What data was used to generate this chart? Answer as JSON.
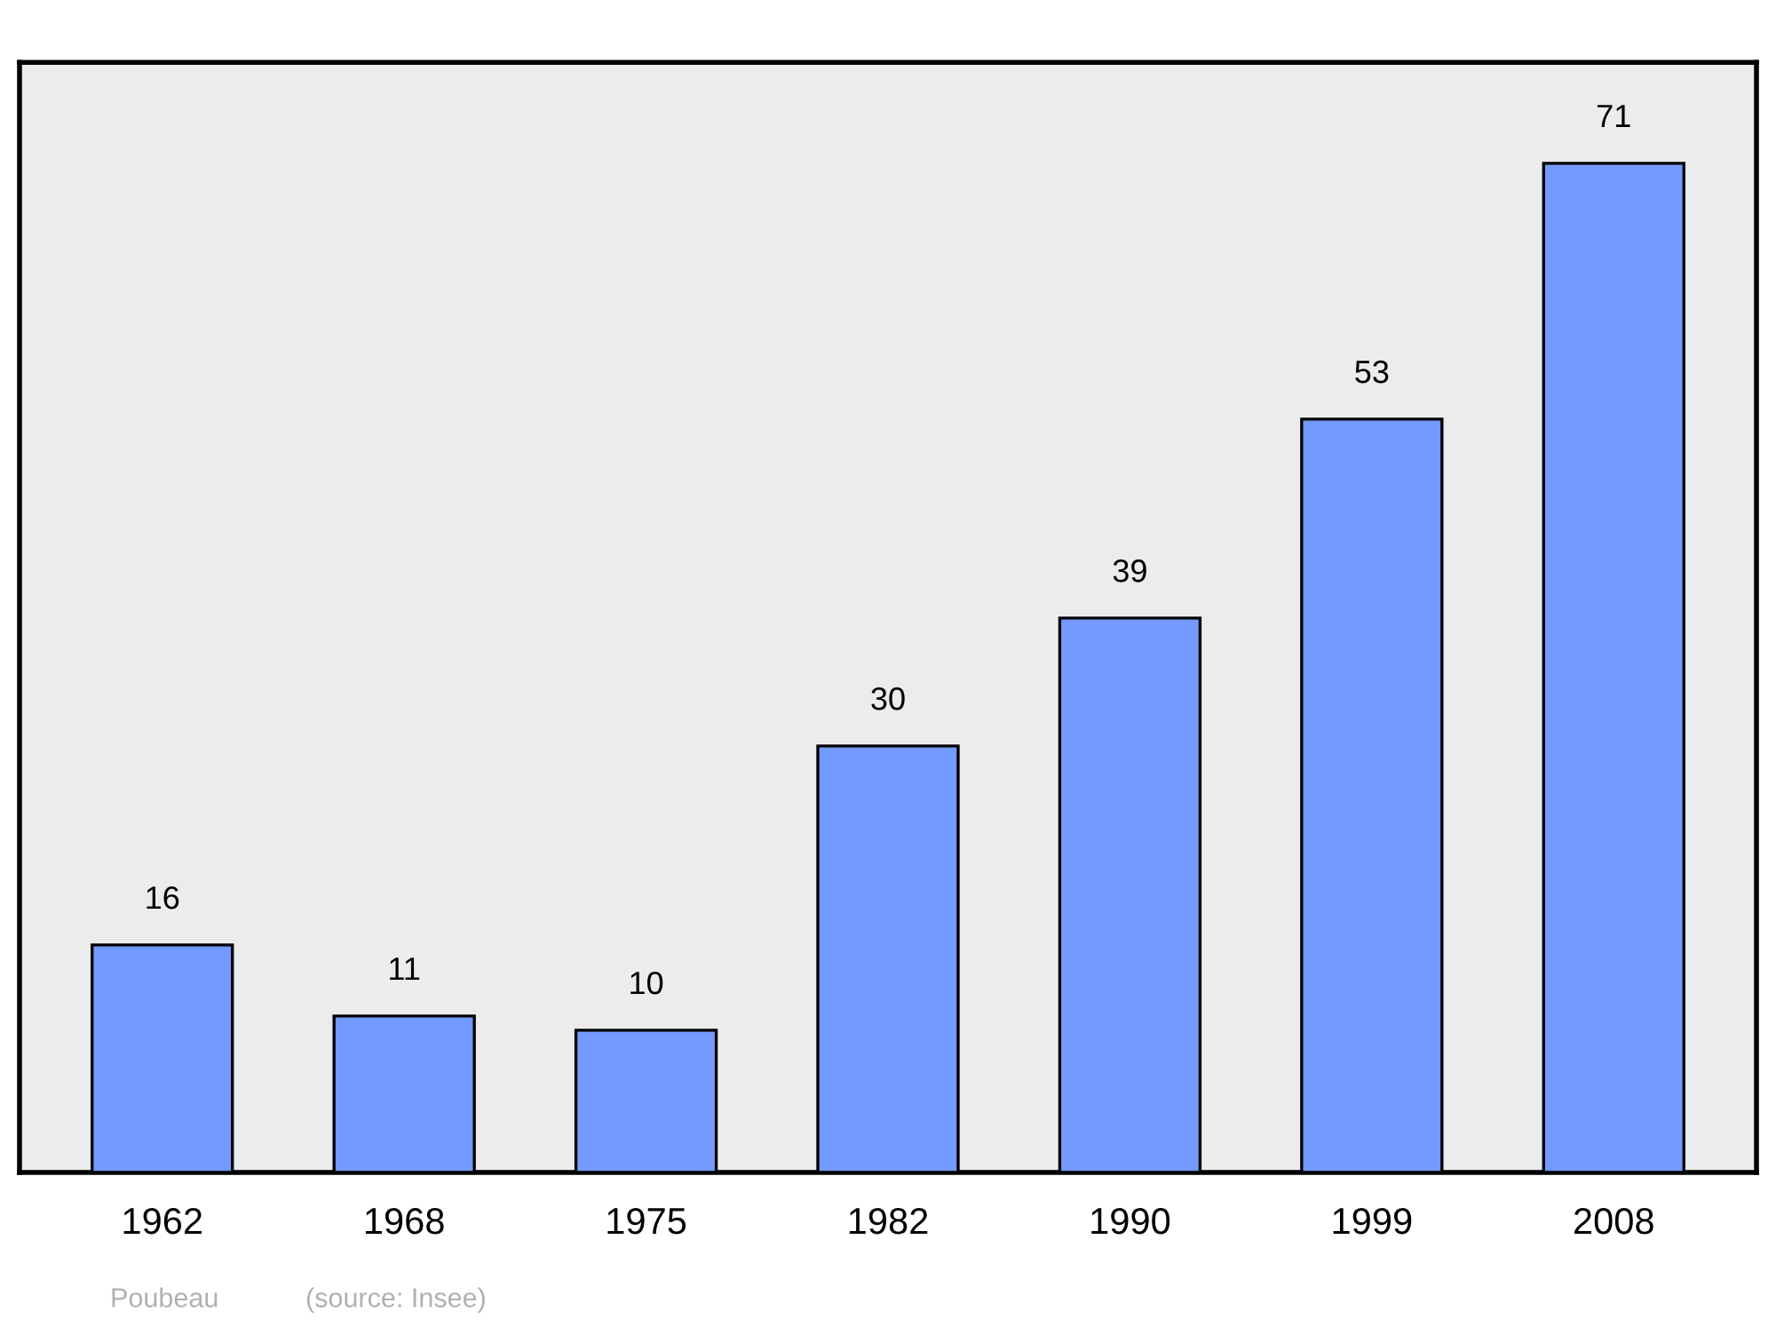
{
  "chart_data": {
    "type": "bar",
    "categories": [
      "1962",
      "1968",
      "1975",
      "1982",
      "1990",
      "1999",
      "2008"
    ],
    "values": [
      16,
      11,
      10,
      30,
      39,
      53,
      71
    ],
    "color": "#7499ff",
    "data_labels": true,
    "grid": false,
    "legend": false,
    "tick_labels": "x",
    "annotations": [
      "Poubeau",
      "(source: Insee)"
    ]
  }
}
